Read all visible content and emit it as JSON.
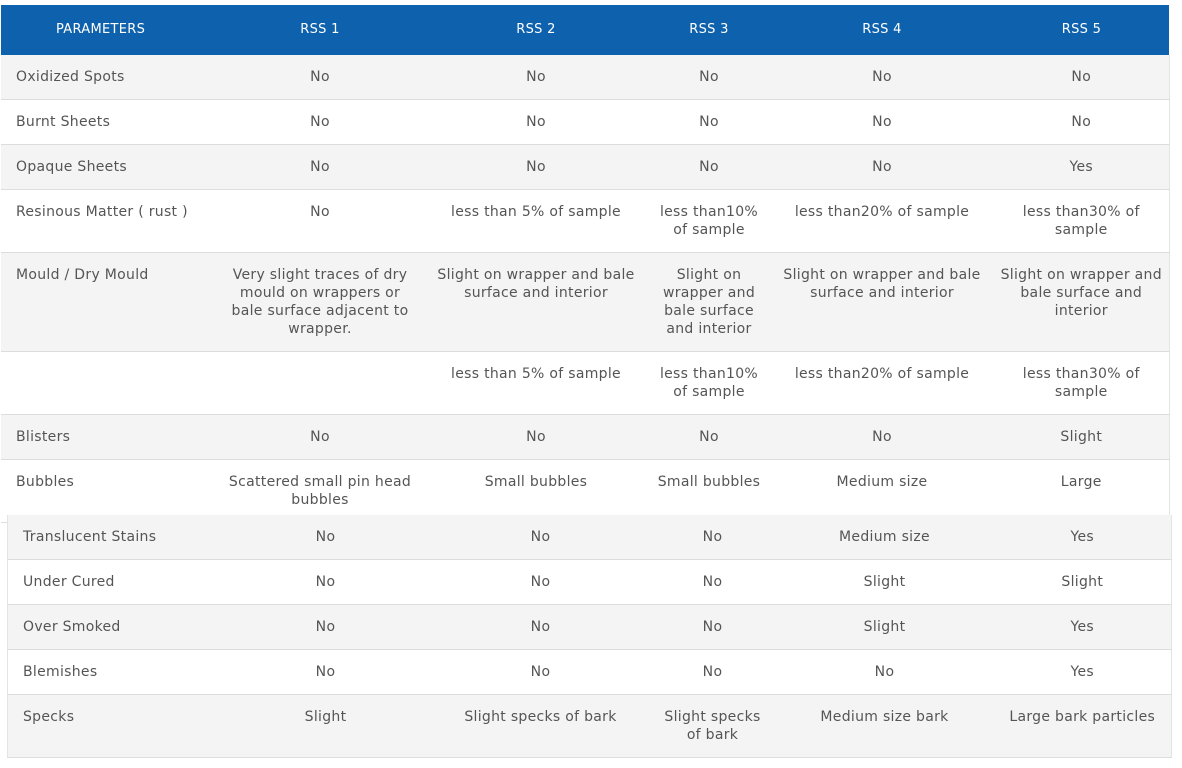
{
  "headers": [
    "PARAMETERS",
    "RSS 1",
    "RSS 2",
    "RSS 3",
    "RSS 4",
    "RSS 5"
  ],
  "rows": [
    {
      "param": "Oxidized Spots",
      "values": [
        "No",
        "No",
        "No",
        "No",
        "No"
      ]
    },
    {
      "param": "Burnt Sheets",
      "values": [
        "No",
        "No",
        "No",
        "No",
        "No"
      ]
    },
    {
      "param": "Opaque Sheets",
      "values": [
        "No",
        "No",
        "No",
        "No",
        "Yes"
      ]
    },
    {
      "param": "Resinous Matter ( rust )",
      "values": [
        "No",
        "less than 5% of sample",
        "less than10% of sample",
        "less than20% of sample",
        "less than30% of sample"
      ]
    },
    {
      "param": "Mould / Dry Mould",
      "values": [
        "Very slight traces of dry mould on wrappers or bale surface adjacent to wrapper.",
        "Slight on wrapper and bale surface and interior",
        "Slight on wrapper and bale surface and interior",
        "Slight on wrapper and bale surface and interior",
        "Slight on wrapper and bale surface and interior"
      ]
    },
    {
      "param": "",
      "values": [
        "",
        "less than 5% of sample",
        "less than10% of sample",
        "less than20% of sample",
        "less than30% of sample"
      ]
    },
    {
      "param": "Blisters",
      "values": [
        "No",
        "No",
        "No",
        "No",
        "Slight"
      ]
    },
    {
      "param": "Bubbles",
      "values": [
        "Scattered small pin head bubbles",
        "Small bubbles",
        "Small bubbles",
        "Medium size",
        "Large"
      ]
    }
  ],
  "rows2": [
    {
      "param": "Translucent Stains",
      "values": [
        "No",
        "No",
        "No",
        "Medium size",
        "Yes"
      ]
    },
    {
      "param": "Under Cured",
      "values": [
        "No",
        "No",
        "No",
        "Slight",
        "Slight"
      ]
    },
    {
      "param": "Over Smoked",
      "values": [
        "No",
        "No",
        "No",
        "Slight",
        "Yes"
      ]
    },
    {
      "param": "Blemishes",
      "values": [
        "No",
        "No",
        "No",
        "No",
        "Yes"
      ]
    },
    {
      "param": "Specks",
      "values": [
        "Slight",
        "Slight specks of bark",
        "Slight specks of bark",
        "Medium size bark",
        "Large bark particles"
      ]
    }
  ]
}
